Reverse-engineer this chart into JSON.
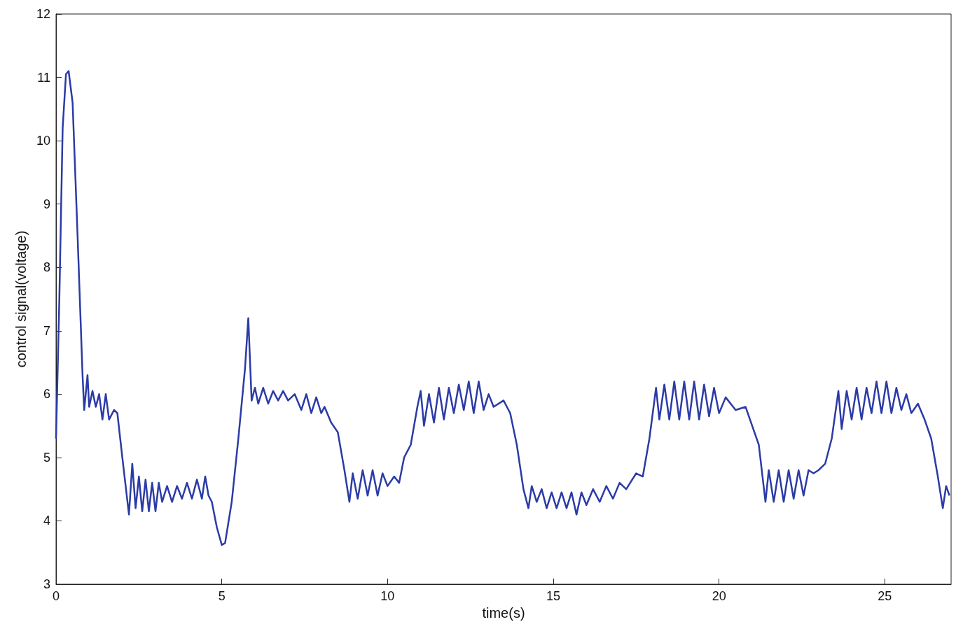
{
  "chart_data": {
    "type": "line",
    "xlabel": "time(s)",
    "ylabel": "control signal(voltage)",
    "xlim": [
      0,
      27
    ],
    "ylim": [
      3,
      12
    ],
    "xticks": [
      0,
      5,
      10,
      15,
      20,
      25
    ],
    "yticks": [
      3,
      4,
      5,
      6,
      7,
      8,
      9,
      10,
      11,
      12
    ],
    "series": [
      {
        "color": "#2b3ba6",
        "x": [
          0,
          0.1,
          0.2,
          0.3,
          0.38,
          0.5,
          0.65,
          0.8,
          0.85,
          0.95,
          1.0,
          1.1,
          1.2,
          1.3,
          1.4,
          1.5,
          1.6,
          1.75,
          1.85,
          2.0,
          2.2,
          2.3,
          2.4,
          2.5,
          2.6,
          2.7,
          2.8,
          2.9,
          3.0,
          3.1,
          3.2,
          3.35,
          3.5,
          3.65,
          3.8,
          3.95,
          4.1,
          4.25,
          4.4,
          4.5,
          4.6,
          4.7,
          4.85,
          5.0,
          5.1,
          5.3,
          5.5,
          5.7,
          5.8,
          5.9,
          6.0,
          6.1,
          6.25,
          6.4,
          6.55,
          6.7,
          6.85,
          7.0,
          7.2,
          7.4,
          7.55,
          7.7,
          7.85,
          8.0,
          8.1,
          8.3,
          8.5,
          8.7,
          8.85,
          8.95,
          9.1,
          9.25,
          9.4,
          9.55,
          9.7,
          9.85,
          10.0,
          10.2,
          10.35,
          10.5,
          10.7,
          10.9,
          11.0,
          11.1,
          11.25,
          11.4,
          11.55,
          11.7,
          11.85,
          12.0,
          12.15,
          12.3,
          12.45,
          12.6,
          12.75,
          12.9,
          13.05,
          13.2,
          13.5,
          13.7,
          13.9,
          14.1,
          14.25,
          14.35,
          14.5,
          14.65,
          14.8,
          14.95,
          15.1,
          15.25,
          15.4,
          15.55,
          15.7,
          15.85,
          16.0,
          16.2,
          16.4,
          16.6,
          16.8,
          17.0,
          17.2,
          17.5,
          17.7,
          17.9,
          18.1,
          18.2,
          18.35,
          18.5,
          18.65,
          18.8,
          18.95,
          19.1,
          19.25,
          19.4,
          19.55,
          19.7,
          19.85,
          20.0,
          20.2,
          20.5,
          20.8,
          21.0,
          21.2,
          21.4,
          21.5,
          21.65,
          21.8,
          21.95,
          22.1,
          22.25,
          22.4,
          22.55,
          22.7,
          22.85,
          23.0,
          23.2,
          23.4,
          23.6,
          23.7,
          23.85,
          24.0,
          24.15,
          24.3,
          24.45,
          24.6,
          24.75,
          24.9,
          25.05,
          25.2,
          25.35,
          25.5,
          25.65,
          25.8,
          26.0,
          26.2,
          26.4,
          26.6,
          26.75,
          26.85,
          26.95
        ],
        "values": [
          5.3,
          7.5,
          10.2,
          11.05,
          11.1,
          10.6,
          8.5,
          6.3,
          5.75,
          6.3,
          5.8,
          6.05,
          5.8,
          6.0,
          5.6,
          6.0,
          5.6,
          5.75,
          5.7,
          5.0,
          4.1,
          4.9,
          4.2,
          4.7,
          4.15,
          4.65,
          4.15,
          4.6,
          4.15,
          4.6,
          4.3,
          4.55,
          4.3,
          4.55,
          4.35,
          4.6,
          4.35,
          4.65,
          4.35,
          4.7,
          4.4,
          4.3,
          3.9,
          3.62,
          3.65,
          4.3,
          5.3,
          6.4,
          7.2,
          5.9,
          6.1,
          5.85,
          6.1,
          5.85,
          6.05,
          5.9,
          6.05,
          5.9,
          6.0,
          5.75,
          6.0,
          5.7,
          5.95,
          5.7,
          5.8,
          5.55,
          5.4,
          4.8,
          4.3,
          4.75,
          4.35,
          4.8,
          4.4,
          4.8,
          4.4,
          4.75,
          4.55,
          4.7,
          4.6,
          5.0,
          5.2,
          5.8,
          6.05,
          5.5,
          6.0,
          5.55,
          6.1,
          5.6,
          6.1,
          5.7,
          6.15,
          5.75,
          6.2,
          5.7,
          6.2,
          5.75,
          6.0,
          5.8,
          5.9,
          5.7,
          5.2,
          4.5,
          4.2,
          4.55,
          4.3,
          4.5,
          4.2,
          4.45,
          4.2,
          4.45,
          4.2,
          4.45,
          4.1,
          4.45,
          4.25,
          4.5,
          4.3,
          4.55,
          4.35,
          4.6,
          4.5,
          4.75,
          4.7,
          5.3,
          6.1,
          5.6,
          6.15,
          5.6,
          6.2,
          5.6,
          6.2,
          5.6,
          6.2,
          5.6,
          6.15,
          5.65,
          6.1,
          5.7,
          5.95,
          5.75,
          5.8,
          5.5,
          5.2,
          4.3,
          4.8,
          4.3,
          4.8,
          4.3,
          4.8,
          4.35,
          4.8,
          4.4,
          4.8,
          4.75,
          4.8,
          4.9,
          5.3,
          6.05,
          5.45,
          6.05,
          5.6,
          6.1,
          5.6,
          6.1,
          5.7,
          6.2,
          5.7,
          6.2,
          5.7,
          6.1,
          5.75,
          6.0,
          5.7,
          5.85,
          5.6,
          5.3,
          4.7,
          4.2,
          4.55,
          4.4
        ]
      }
    ]
  }
}
